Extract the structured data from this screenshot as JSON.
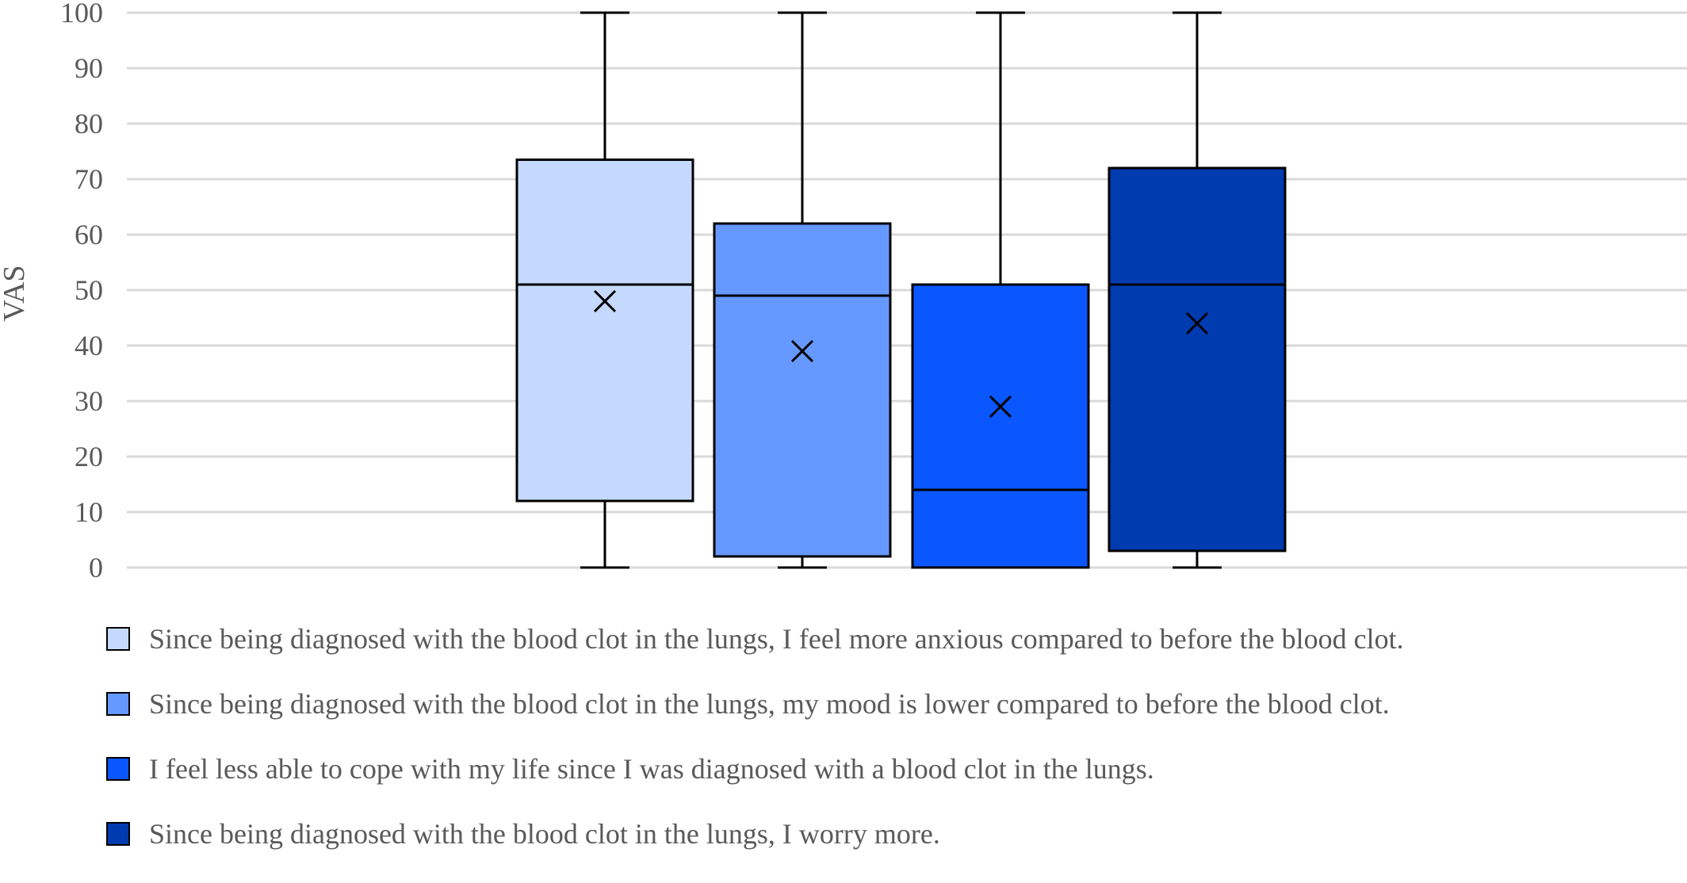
{
  "chart_data": {
    "type": "boxplot",
    "ylabel": "VAS",
    "ylim": [
      0,
      100
    ],
    "yticks": [
      0,
      10,
      20,
      30,
      40,
      50,
      60,
      70,
      80,
      90,
      100
    ],
    "grid": true,
    "legend_position": "bottom",
    "series": [
      {
        "name": "Since being diagnosed with the blood clot in the lungs, I feel more anxious compared to before the blood clot.",
        "color": "#c5d9ff",
        "min": 0,
        "q1": 12,
        "median": 51,
        "q3": 73.5,
        "max": 100,
        "mean": 48
      },
      {
        "name": "Since being diagnosed with the blood clot in the lungs, my mood is lower compared to before the blood clot.",
        "color": "#6699ff",
        "min": 0,
        "q1": 2,
        "median": 49,
        "q3": 62,
        "max": 100,
        "mean": 39
      },
      {
        "name": "I feel less able to cope with my life since I was diagnosed with a blood clot in the lungs.",
        "color": "#0a57ff",
        "min": 0,
        "q1": 0,
        "median": 14,
        "q3": 51,
        "max": 100,
        "mean": 29
      },
      {
        "name": "Since being diagnosed with the blood clot in the lungs, I worry more.",
        "color": "#003bb0",
        "min": 0,
        "q1": 3,
        "median": 51,
        "q3": 72,
        "max": 100,
        "mean": 44
      }
    ]
  }
}
